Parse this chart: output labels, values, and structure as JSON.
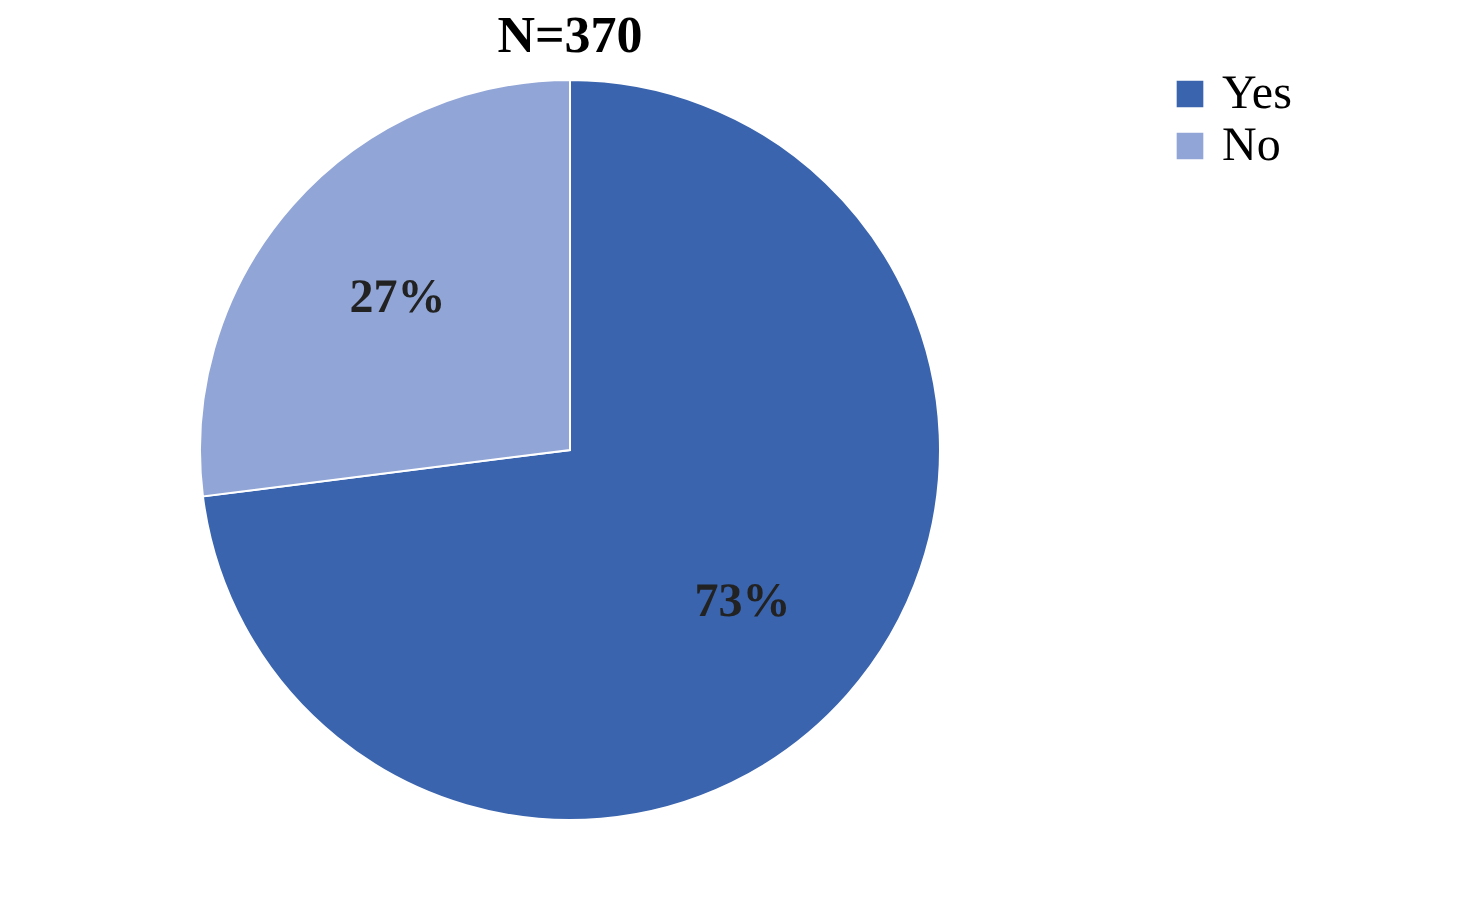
{
  "chart_data": {
    "type": "pie",
    "title": "N=370",
    "categories": [
      "Yes",
      "No"
    ],
    "values": [
      73,
      27
    ],
    "colors": [
      "#3a64ae",
      "#91a5d6"
    ],
    "value_labels": [
      "73%",
      "27%"
    ],
    "legend": "right"
  }
}
